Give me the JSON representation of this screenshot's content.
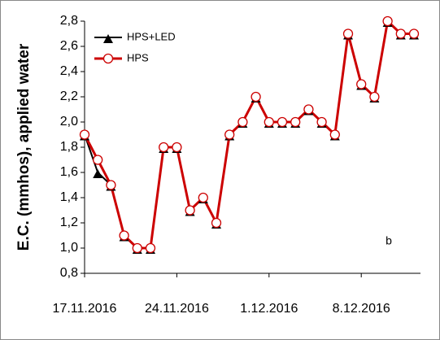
{
  "chart_data": {
    "type": "line",
    "y_label": "E.C. (mmhos), applied water",
    "annotation": "b",
    "x": [
      "17.11.2016",
      "18.11.2016",
      "19.11.2016",
      "20.11.2016",
      "21.11.2016",
      "22.11.2016",
      "23.11.2016",
      "24.11.2016",
      "25.11.2016",
      "26.11.2016",
      "27.11.2016",
      "28.11.2016",
      "29.11.2016",
      "30.11.2016",
      "1.12.2016",
      "2.12.2016",
      "3.12.2016",
      "4.12.2016",
      "5.12.2016",
      "6.12.2016",
      "7.12.2016",
      "8.12.2016",
      "9.12.2016",
      "10.12.2016",
      "11.12.2016",
      "12.12.2016"
    ],
    "series": [
      {
        "name": "HPS+LED",
        "color": "#000000",
        "marker": "triangle",
        "values": [
          1.9,
          1.6,
          1.5,
          1.1,
          1.0,
          1.0,
          1.8,
          1.8,
          1.3,
          1.4,
          1.2,
          1.9,
          2.0,
          2.2,
          2.0,
          2.0,
          2.0,
          2.1,
          2.0,
          1.9,
          2.7,
          2.3,
          2.2,
          2.8,
          2.7,
          2.7
        ]
      },
      {
        "name": "HPS",
        "color": "#cc0000",
        "marker": "circle",
        "values": [
          1.9,
          1.7,
          1.5,
          1.1,
          1.0,
          1.0,
          1.8,
          1.8,
          1.3,
          1.4,
          1.2,
          1.9,
          2.0,
          2.2,
          2.0,
          2.0,
          2.0,
          2.1,
          2.0,
          1.9,
          2.7,
          2.3,
          2.2,
          2.8,
          2.7,
          2.7
        ]
      }
    ],
    "xlim": [
      "17.11.2016",
      "12.12.2016"
    ],
    "xticks": [
      "17.11.2016",
      "24.11.2016",
      "1.12.2016",
      "8.12.2016"
    ],
    "ylim": [
      0.8,
      2.8
    ],
    "yticks": [
      {
        "value": 0.8,
        "label": "0,8"
      },
      {
        "value": 1.0,
        "label": "1,0"
      },
      {
        "value": 1.2,
        "label": "1,2"
      },
      {
        "value": 1.4,
        "label": "1,4"
      },
      {
        "value": 1.6,
        "label": "1,6"
      },
      {
        "value": 1.8,
        "label": "1,8"
      },
      {
        "value": 2.0,
        "label": "2,0"
      },
      {
        "value": 2.2,
        "label": "2,2"
      },
      {
        "value": 2.4,
        "label": "2,4"
      },
      {
        "value": 2.6,
        "label": "2,6"
      },
      {
        "value": 2.8,
        "label": "2,8"
      }
    ],
    "grid": false,
    "legend": "top-left"
  }
}
